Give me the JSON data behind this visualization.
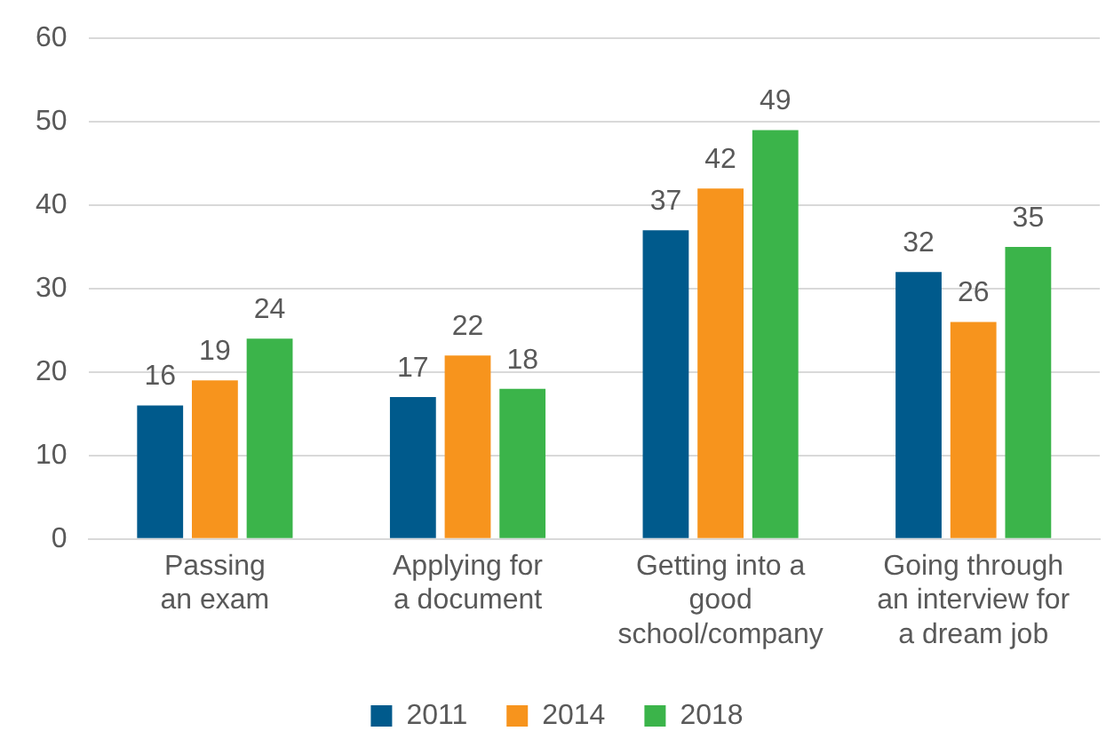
{
  "chart_data": {
    "type": "bar",
    "categories": [
      "Passing\nan exam",
      "Applying for\na document",
      "Getting into a\ngood\nschool/company",
      "Going through\nan interview for\na dream job"
    ],
    "series": [
      {
        "name": "2011",
        "color": "#005a8c",
        "values": [
          16,
          17,
          37,
          32
        ]
      },
      {
        "name": "2014",
        "color": "#f7941d",
        "values": [
          19,
          22,
          42,
          26
        ]
      },
      {
        "name": "2018",
        "color": "#3bb44a",
        "values": [
          24,
          18,
          49,
          35
        ]
      }
    ],
    "ylim": [
      0,
      60
    ],
    "yticks": [
      0,
      10,
      20,
      30,
      40,
      50,
      60
    ],
    "grid": "y",
    "legend": "bottom",
    "data_labels": true
  }
}
